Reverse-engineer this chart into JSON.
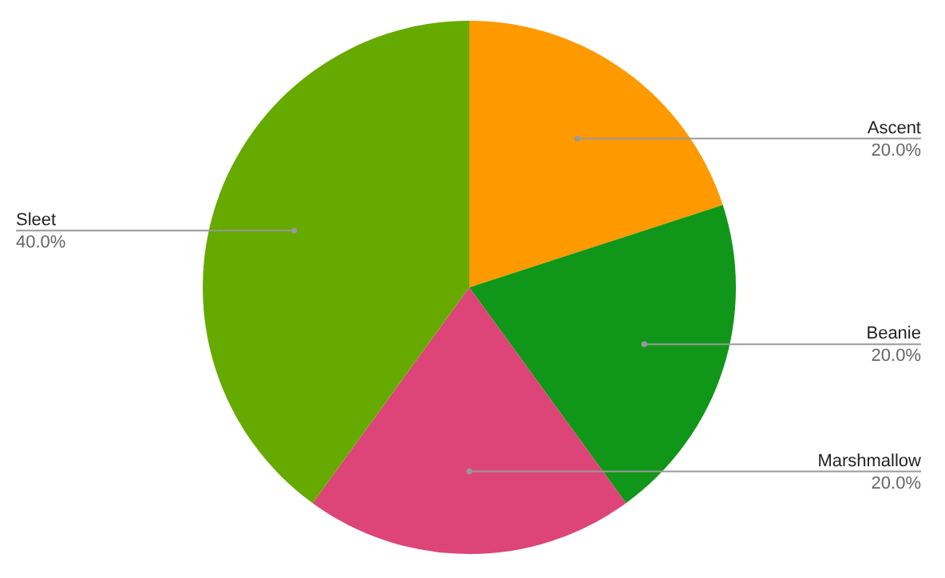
{
  "chart_data": {
    "type": "pie",
    "categories": [
      "Ascent",
      "Beanie",
      "Marshmallow",
      "Sleet"
    ],
    "values": [
      20,
      20,
      20,
      40
    ],
    "value_labels": [
      "20.0%",
      "20.0%",
      "20.0%",
      "40.0%"
    ],
    "colors": [
      "#ff9900",
      "#109618",
      "#dd4477",
      "#66aa00"
    ],
    "legend": false
  }
}
